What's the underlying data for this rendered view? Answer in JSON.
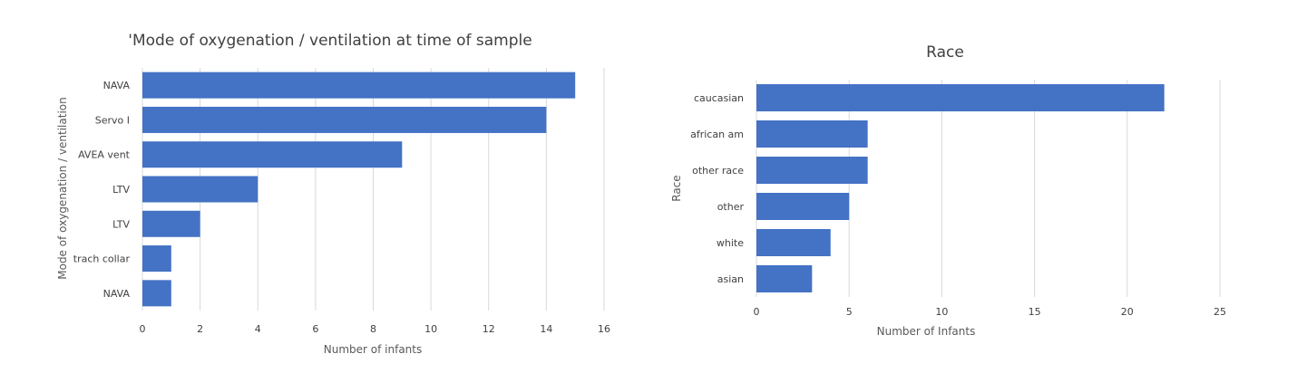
{
  "chart_data": [
    {
      "type": "bar",
      "orientation": "horizontal",
      "title": "'Mode of  oxygenation / ventilation at time of sample",
      "xlabel": "Number of infants",
      "ylabel": "Mode of  oxygenation / ventilation",
      "categories": [
        "NAVA",
        "Servo I",
        "AVEA vent",
        "LTV",
        "LTV",
        "trach collar",
        "NAVA"
      ],
      "values": [
        15,
        14,
        9,
        4,
        2,
        1,
        1
      ],
      "xlim": [
        0,
        16
      ],
      "xticks": [
        0,
        2,
        4,
        6,
        8,
        10,
        12,
        14,
        16
      ],
      "grid": true,
      "color": "#4472c4"
    },
    {
      "type": "bar",
      "orientation": "horizontal",
      "title": "Race",
      "xlabel": "Number of Infants",
      "ylabel": "Race",
      "categories": [
        "caucasian",
        "african am",
        "other race",
        "other",
        "white",
        "asian"
      ],
      "values": [
        22,
        6,
        6,
        5,
        4,
        3
      ],
      "xlim": [
        0,
        25
      ],
      "xticks": [
        0,
        5,
        10,
        15,
        20,
        25
      ],
      "grid": true,
      "color": "#4472c4"
    }
  ]
}
